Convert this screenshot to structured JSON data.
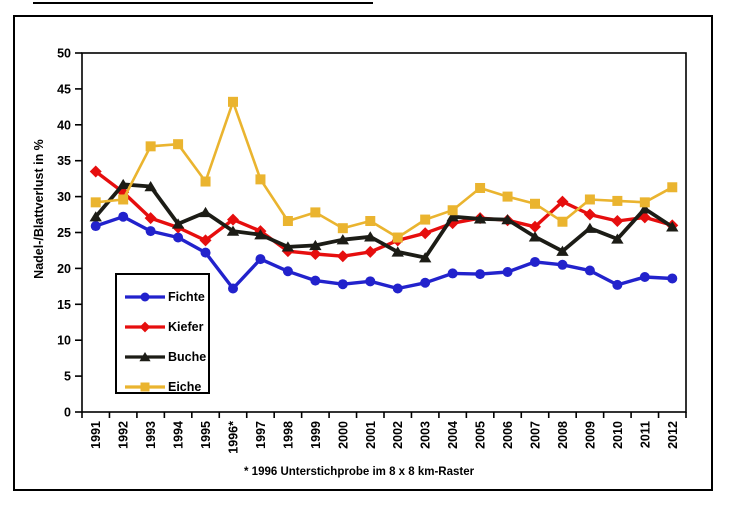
{
  "figure": {
    "footnote": "* 1996 Unterstichprobe im 8 x 8 km-Raster"
  },
  "chart_data": {
    "type": "line",
    "title": "",
    "xlabel": "",
    "ylabel": "Nadel-/Blattverlust in %",
    "ylim": [
      0,
      50
    ],
    "y_ticks": [
      0,
      5,
      10,
      15,
      20,
      25,
      30,
      35,
      40,
      45,
      50
    ],
    "grid": false,
    "legend_position": "inside-bottom-left",
    "x_labels": [
      "1991",
      "1992",
      "1993",
      "1994",
      "1995",
      "1996*",
      "1997",
      "1998",
      "1999",
      "2000",
      "2001",
      "2002",
      "2003",
      "2004",
      "2005",
      "2006",
      "2007",
      "2008",
      "2009",
      "2010",
      "2011",
      "2012"
    ],
    "series": [
      {
        "name": "Fichte",
        "color": "#2222CC",
        "marker": "circle",
        "values": [
          25.9,
          27.2,
          25.2,
          24.3,
          22.2,
          17.2,
          21.3,
          19.6,
          18.3,
          17.8,
          18.2,
          17.2,
          18.0,
          19.3,
          19.2,
          19.5,
          20.9,
          20.5,
          19.7,
          17.7,
          18.8,
          18.6
        ]
      },
      {
        "name": "Kiefer",
        "color": "#E60E0E",
        "marker": "diamond",
        "values": [
          33.5,
          30.6,
          27.0,
          25.7,
          23.9,
          26.8,
          25.2,
          22.4,
          22.0,
          21.7,
          22.3,
          23.9,
          24.9,
          26.3,
          27.0,
          26.7,
          25.8,
          29.3,
          27.5,
          26.6,
          27.1,
          26.0
        ]
      },
      {
        "name": "Buche",
        "color": "#1C1C16",
        "marker": "triangle",
        "values": [
          27.2,
          31.7,
          31.4,
          26.2,
          27.8,
          25.2,
          24.7,
          23.0,
          23.2,
          24.0,
          24.4,
          22.3,
          21.5,
          27.2,
          26.9,
          26.8,
          24.4,
          22.4,
          25.6,
          24.1,
          28.3,
          25.8
        ]
      },
      {
        "name": "Eiche",
        "color": "#EAB42F",
        "marker": "square",
        "values": [
          29.2,
          29.6,
          37.0,
          37.3,
          32.1,
          43.2,
          32.4,
          26.6,
          27.8,
          25.6,
          26.6,
          24.3,
          26.8,
          28.1,
          31.2,
          30.0,
          29.0,
          26.5,
          29.6,
          29.4,
          29.2,
          31.3
        ]
      }
    ]
  }
}
